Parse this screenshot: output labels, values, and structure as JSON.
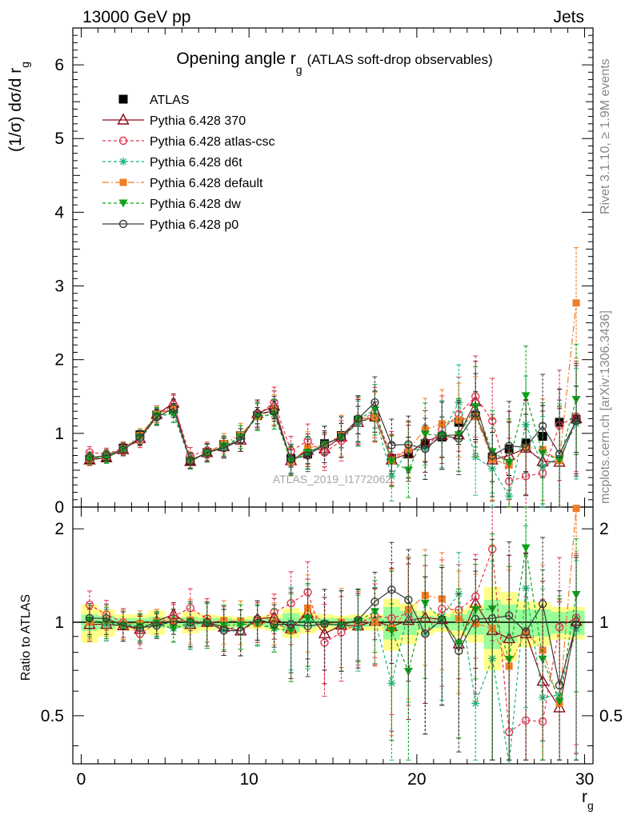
{
  "header": {
    "left": "13000 GeV pp",
    "right": "Jets",
    "side_top": "Rivet 3.1.10, ≥ 1.9M events",
    "side_bottom": "mcplots.cern.ch [arXiv:1306.3436]",
    "watermark": "ATLAS_2019_I1772062"
  },
  "chart_data": [
    {
      "type": "line",
      "title": "Opening angle r",
      "title_sub": "g",
      "title_extra": "(ATLAS soft-drop observables)",
      "ylabel": "(1/σ) dσ/d r",
      "ylabel_sub": "g",
      "xlim": [
        -0.5,
        30.5
      ],
      "ylim": [
        0,
        6.5
      ],
      "yticks": [
        0,
        1,
        2,
        3,
        4,
        5,
        6
      ],
      "grid": false,
      "legend_position": "top-left",
      "x": [
        0.5,
        1.5,
        2.5,
        3.5,
        4.5,
        5.5,
        6.5,
        7.5,
        8.5,
        9.5,
        10.5,
        11.5,
        12.5,
        13.5,
        14.5,
        15.5,
        16.5,
        17.5,
        18.5,
        19.5,
        20.5,
        21.5,
        22.5,
        23.5,
        24.5,
        25.5,
        26.5,
        27.5,
        28.5,
        29.5
      ],
      "series": [
        {
          "name": "ATLAS",
          "color": "#000000",
          "marker": "square",
          "dash": "",
          "values": [
            0.65,
            0.68,
            0.8,
            0.98,
            1.25,
            1.33,
            0.63,
            0.74,
            0.85,
            0.97,
            1.24,
            1.32,
            0.66,
            0.72,
            0.86,
            0.97,
            1.18,
            1.22,
            0.66,
            0.72,
            0.86,
            0.95,
            1.15,
            1.24,
            0.68,
            0.79,
            0.87,
            0.96,
            1.15,
            1.19
          ]
        },
        {
          "name": "Pythia 6.428 370",
          "color": "#8b0a1a",
          "marker": "triangle-open",
          "dash": "",
          "values": [
            0.64,
            0.67,
            0.78,
            0.93,
            1.26,
            1.41,
            0.62,
            0.74,
            0.82,
            0.91,
            1.27,
            1.37,
            0.63,
            0.77,
            0.79,
            0.95,
            1.15,
            1.23,
            0.64,
            0.73,
            0.89,
            0.97,
            0.98,
            1.43,
            0.64,
            0.7,
            0.8,
            0.62,
            0.61,
            1.2
          ]
        },
        {
          "name": "Pythia 6.428 atlas-csc",
          "color": "#e8304f",
          "marker": "circle-open",
          "dash": "4,3",
          "values": [
            0.74,
            0.72,
            0.8,
            0.9,
            1.24,
            1.39,
            0.7,
            0.76,
            0.8,
            0.91,
            1.25,
            1.42,
            0.76,
            0.9,
            0.74,
            0.9,
            1.17,
            1.28,
            0.68,
            0.77,
            0.79,
            1.05,
            1.26,
            1.5,
            1.17,
            0.35,
            0.42,
            0.46,
            1.11,
            1.23
          ]
        },
        {
          "name": "Pythia 6.428 d6t",
          "color": "#16b37a",
          "marker": "star",
          "dash": "4,3",
          "values": [
            0.66,
            0.67,
            0.79,
            0.95,
            1.23,
            1.27,
            0.62,
            0.74,
            0.8,
            0.95,
            1.22,
            1.26,
            0.66,
            0.73,
            0.85,
            0.95,
            1.13,
            1.24,
            0.42,
            0.78,
            0.79,
            0.99,
            1.42,
            0.68,
            0.52,
            0.15,
            1.12,
            0.55,
            0.67,
            1.13
          ]
        },
        {
          "name": "Pythia 6.428 default",
          "color": "#f07c24",
          "marker": "square-filled",
          "dash": "8,3,2,3",
          "values": [
            0.65,
            0.69,
            0.79,
            0.97,
            1.26,
            1.34,
            0.64,
            0.74,
            0.86,
            0.98,
            1.23,
            1.32,
            0.62,
            0.8,
            0.85,
            0.97,
            1.19,
            1.22,
            0.63,
            0.79,
            1.05,
            1.13,
            1.18,
            1.23,
            0.65,
            0.57,
            0.81,
            0.78,
            0.63,
            2.77
          ]
        },
        {
          "name": "Pythia 6.428 dw",
          "color": "#0fa31a",
          "marker": "triangle-down",
          "dash": "4,3",
          "values": [
            0.66,
            0.68,
            0.78,
            0.95,
            1.24,
            1.27,
            0.63,
            0.73,
            0.83,
            0.95,
            1.23,
            1.26,
            0.62,
            0.74,
            0.85,
            0.95,
            1.19,
            1.32,
            0.62,
            0.5,
            0.99,
            0.97,
            0.98,
            1.36,
            0.75,
            0.6,
            1.51,
            0.73,
            0.64,
            1.46
          ]
        },
        {
          "name": "Pythia 6.428 p0",
          "color": "#3a3a3a",
          "marker": "circle-open",
          "dash": "",
          "values": [
            0.67,
            0.7,
            0.78,
            0.94,
            1.22,
            1.34,
            0.63,
            0.74,
            0.8,
            0.91,
            1.27,
            1.3,
            0.65,
            0.7,
            0.85,
            0.95,
            1.2,
            1.42,
            0.84,
            0.85,
            0.79,
            0.97,
            0.93,
            1.27,
            0.7,
            0.83,
            0.81,
            1.1,
            0.72,
            1.17
          ]
        }
      ]
    },
    {
      "type": "line",
      "ylabel": "Ratio to ATLAS",
      "xlabel": "r",
      "xlabel_sub": "g",
      "ylim": [
        0.35,
        2.35
      ],
      "yticks": [
        0.5,
        1,
        2
      ],
      "xticks": [
        0,
        10,
        20,
        30
      ],
      "reference_line": 1,
      "band_inner_color": "#99ff99",
      "band_outer_color": "#ffff88",
      "band_inner_halfwidth": [
        0.06,
        0.05,
        0.03,
        0.03,
        0.04,
        0.02,
        0.04,
        0.03,
        0.03,
        0.02,
        0.02,
        0.03,
        0.07,
        0.04,
        0.03,
        0.03,
        0.03,
        0.03,
        0.12,
        0.09,
        0.05,
        0.04,
        0.06,
        0.09,
        0.18,
        0.14,
        0.1,
        0.1,
        0.08,
        0.09
      ],
      "band_outer_halfwidth": [
        0.14,
        0.1,
        0.06,
        0.06,
        0.09,
        0.04,
        0.08,
        0.06,
        0.05,
        0.04,
        0.05,
        0.06,
        0.11,
        0.08,
        0.06,
        0.05,
        0.06,
        0.06,
        0.19,
        0.15,
        0.09,
        0.07,
        0.1,
        0.14,
        0.3,
        0.25,
        0.17,
        0.16,
        0.12,
        0.12
      ]
    }
  ]
}
